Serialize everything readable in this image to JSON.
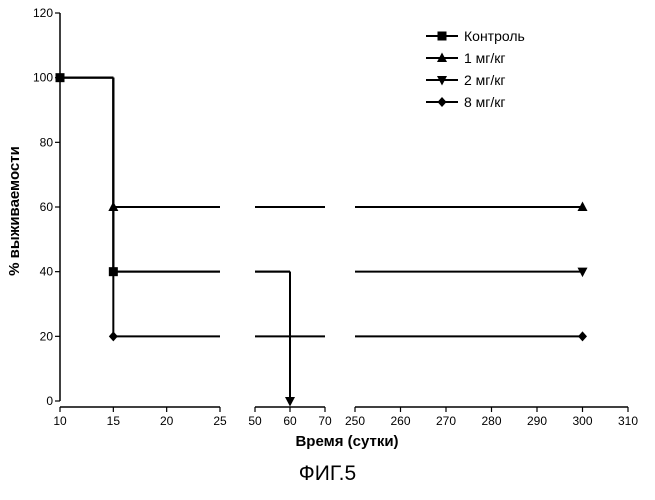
{
  "figure_caption": "ФИГ.5",
  "chart_data": {
    "type": "line",
    "line_shape": "step",
    "xlabel": "Время (сутки)",
    "ylabel": "% выживаемости",
    "ylim": [
      0,
      120
    ],
    "yticks": [
      0,
      20,
      40,
      60,
      80,
      100,
      120
    ],
    "x_axis_segments": [
      {
        "range": [
          10,
          25
        ],
        "ticks": [
          10,
          15,
          20,
          25
        ]
      },
      {
        "range": [
          50,
          70
        ],
        "ticks": [
          50,
          60,
          70
        ]
      },
      {
        "range": [
          250,
          310
        ],
        "ticks": [
          250,
          260,
          270,
          280,
          290,
          300,
          310
        ]
      }
    ],
    "legend_position": "top-right",
    "series": [
      {
        "name": "Контроль",
        "marker": "square",
        "points": [
          [
            10,
            100
          ],
          [
            15,
            100
          ],
          [
            15,
            40
          ],
          [
            60,
            40
          ],
          [
            60,
            0
          ]
        ],
        "marker_points": [
          [
            10,
            100
          ],
          [
            15,
            40
          ]
        ]
      },
      {
        "name": "1 мг/кг",
        "marker": "triangle-up",
        "points": [
          [
            10,
            100
          ],
          [
            15,
            100
          ],
          [
            15,
            60
          ],
          [
            300,
            60
          ]
        ],
        "marker_points": [
          [
            15,
            60
          ],
          [
            300,
            60
          ]
        ]
      },
      {
        "name": "2 мг/кг",
        "marker": "triangle-down",
        "points": [
          [
            10,
            100
          ],
          [
            15,
            100
          ],
          [
            15,
            40
          ],
          [
            60,
            40
          ],
          [
            60,
            0
          ]
        ],
        "marker_points": [
          [
            60,
            0
          ],
          [
            300,
            40
          ]
        ],
        "extra_points": [
          [
            250,
            40
          ],
          [
            300,
            40
          ]
        ]
      },
      {
        "name": "8 мг/кг",
        "marker": "diamond",
        "points": [
          [
            10,
            100
          ],
          [
            15,
            100
          ],
          [
            15,
            20
          ],
          [
            300,
            20
          ]
        ],
        "marker_points": [
          [
            15,
            20
          ],
          [
            300,
            20
          ]
        ]
      }
    ]
  }
}
